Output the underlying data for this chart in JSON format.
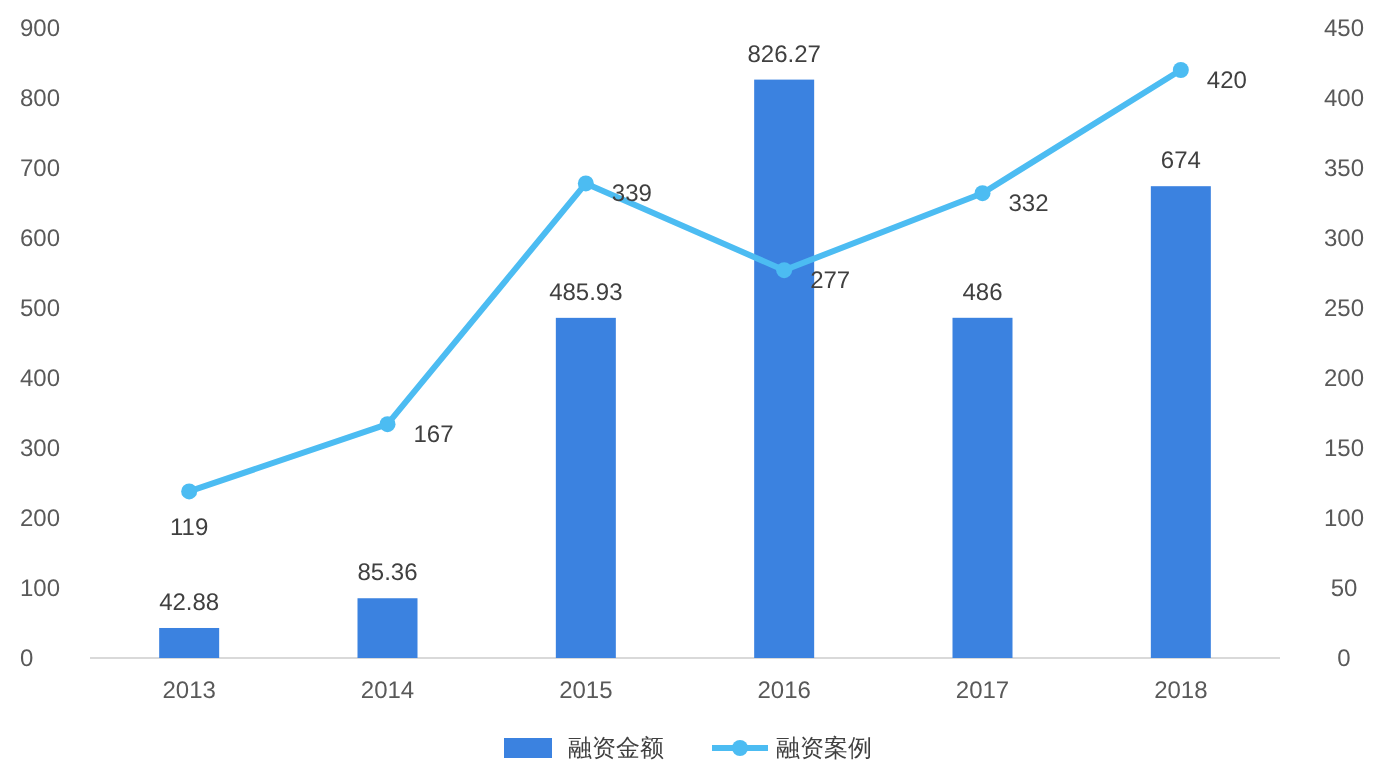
{
  "chart_data": {
    "type": "bar",
    "categories": [
      "2013",
      "2014",
      "2015",
      "2016",
      "2017",
      "2018"
    ],
    "series": [
      {
        "name": "融资金额",
        "color": "#3b82e0",
        "values": [
          42.88,
          85.36,
          485.93,
          826.27,
          486,
          674
        ]
      },
      {
        "name": "融资案例",
        "type": "line",
        "axis": "y2",
        "color": "#4cbcf2",
        "values": [
          119,
          167,
          339,
          277,
          332,
          420
        ]
      }
    ],
    "ylim": [
      0,
      900
    ],
    "yticks": [
      0,
      100,
      200,
      300,
      400,
      500,
      600,
      700,
      800,
      900
    ],
    "y2lim": [
      0,
      450
    ],
    "y2ticks": [
      0,
      50,
      100,
      150,
      200,
      250,
      300,
      350,
      400,
      450
    ],
    "data_labels": true,
    "legend": "bottom",
    "marker": "circle"
  }
}
